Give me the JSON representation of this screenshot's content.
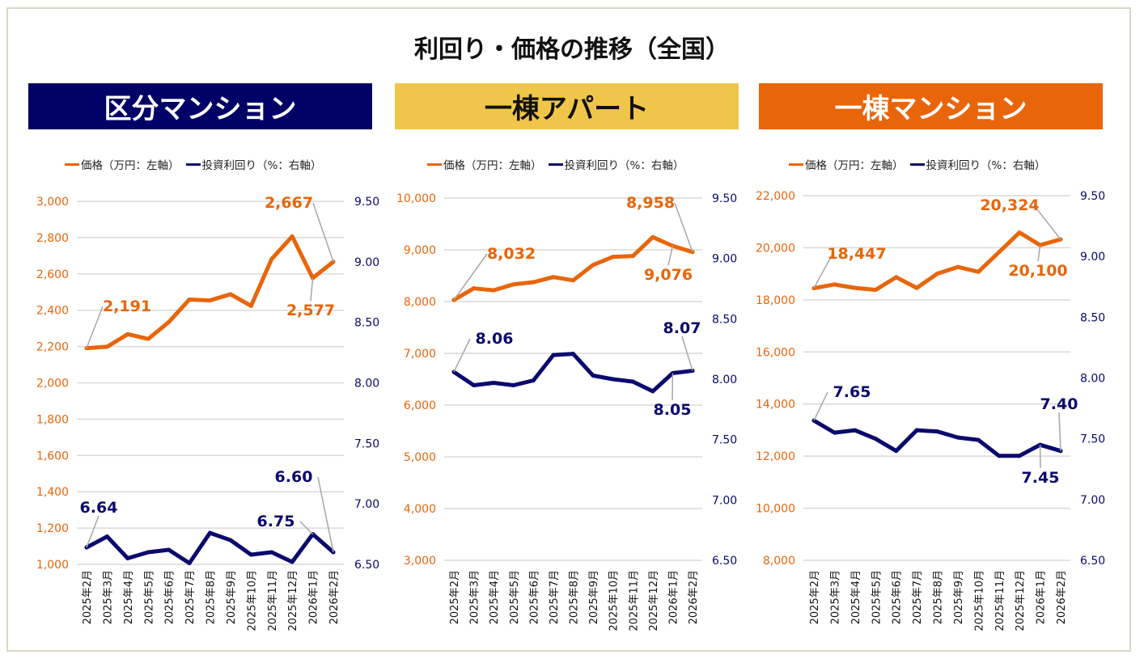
{
  "title": "利回り・価格の推移（全国）",
  "colors": {
    "price": "#e8650a",
    "yield": "#0a0a6e",
    "grid": "#d9d9d9",
    "leader": "#a6a6a6"
  },
  "legend": {
    "price": "価格（万円：左軸）",
    "yield": "投資利回り（%：右軸）"
  },
  "chart_data": [
    {
      "type": "line",
      "title": "区分マンション",
      "banner_color": "#000066",
      "banner_text_color": "#ffffff",
      "categories": [
        "2025年2月",
        "2025年3月",
        "2025年4月",
        "2025年5月",
        "2025年6月",
        "2025年7月",
        "2025年8月",
        "2025年9月",
        "2025年10月",
        "2025年11月",
        "2025年12月",
        "2026年1月",
        "2026年2月"
      ],
      "left_axis": {
        "ylim": [
          1000,
          3000
        ],
        "ticks": [
          "1,000",
          "1,200",
          "1,400",
          "1,600",
          "1,800",
          "2,000",
          "2,200",
          "2,400",
          "2,600",
          "2,800",
          "3,000"
        ]
      },
      "right_axis": {
        "ylim": [
          6.5,
          9.5
        ],
        "ticks": [
          "6.50",
          "7.00",
          "7.50",
          "8.00",
          "8.50",
          "9.00",
          "9.50"
        ]
      },
      "grid": true,
      "legend_position": "top",
      "series": [
        {
          "name": "価格（万円：左軸）",
          "axis": "left",
          "values": [
            2191,
            2199,
            2268,
            2242,
            2335,
            2459,
            2454,
            2488,
            2424,
            2682,
            2807,
            2577,
            2667
          ]
        },
        {
          "name": "投資利回り（%：右軸）",
          "axis": "right",
          "values": [
            6.64,
            6.73,
            6.55,
            6.6,
            6.62,
            6.51,
            6.76,
            6.7,
            6.58,
            6.6,
            6.52,
            6.75,
            6.6
          ]
        }
      ],
      "data_labels": [
        {
          "series": 0,
          "index": 0,
          "text": "2,191"
        },
        {
          "series": 0,
          "index": 12,
          "text": "2,667"
        },
        {
          "series": 0,
          "index": 11,
          "text": "2,577"
        },
        {
          "series": 1,
          "index": 0,
          "text": "6.64"
        },
        {
          "series": 1,
          "index": 12,
          "text": "6.60"
        },
        {
          "series": 1,
          "index": 11,
          "text": "6.75"
        }
      ]
    },
    {
      "type": "line",
      "title": "一棟アパート",
      "banner_color": "#f0c64a",
      "banner_text_color": "#111111",
      "categories": [
        "2025年2月",
        "2025年3月",
        "2025年4月",
        "2025年5月",
        "2025年6月",
        "2025年7月",
        "2025年8月",
        "2025年9月",
        "2025年10月",
        "2025年11月",
        "2025年12月",
        "2026年1月",
        "2026年2月"
      ],
      "left_axis": {
        "ylim": [
          3000,
          10000
        ],
        "ticks": [
          "3,000",
          "4,000",
          "5,000",
          "6,000",
          "7,000",
          "8,000",
          "9,000",
          "10,000"
        ]
      },
      "right_axis": {
        "ylim": [
          6.5,
          9.5
        ],
        "ticks": [
          "6.50",
          "7.00",
          "7.50",
          "8.00",
          "8.50",
          "9.00",
          "9.50"
        ]
      },
      "grid": true,
      "legend_position": "top",
      "series": [
        {
          "name": "価格（万円：左軸）",
          "axis": "left",
          "values": [
            8032,
            8255,
            8219,
            8333,
            8375,
            8474,
            8411,
            8708,
            8865,
            8880,
            9245,
            9076,
            8958
          ]
        },
        {
          "name": "投資利回り（%：右軸）",
          "axis": "right",
          "values": [
            8.06,
            7.95,
            7.97,
            7.95,
            7.99,
            8.2,
            8.21,
            8.03,
            8.0,
            7.98,
            7.9,
            8.05,
            8.07
          ]
        }
      ],
      "data_labels": [
        {
          "series": 0,
          "index": 0,
          "text": "8,032"
        },
        {
          "series": 0,
          "index": 12,
          "text": "8,958"
        },
        {
          "series": 0,
          "index": 11,
          "text": "9,076"
        },
        {
          "series": 1,
          "index": 0,
          "text": "8.06"
        },
        {
          "series": 1,
          "index": 12,
          "text": "8.07"
        },
        {
          "series": 1,
          "index": 11,
          "text": "8.05"
        }
      ]
    },
    {
      "type": "line",
      "title": "一棟マンション",
      "banner_color": "#e8650a",
      "banner_text_color": "#ffffff",
      "categories": [
        "2025年2月",
        "2025年3月",
        "2025年4月",
        "2025年5月",
        "2025年6月",
        "2025年7月",
        "2025年8月",
        "2025年9月",
        "2025年10月",
        "2025年11月",
        "2025年12月",
        "2026年1月",
        "2026年2月"
      ],
      "left_axis": {
        "ylim": [
          8000,
          22000
        ],
        "ticks": [
          "8,000",
          "10,000",
          "12,000",
          "14,000",
          "16,000",
          "18,000",
          "20,000",
          "22,000"
        ]
      },
      "right_axis": {
        "ylim": [
          6.5,
          9.5
        ],
        "ticks": [
          "6.50",
          "7.00",
          "7.50",
          "8.00",
          "8.50",
          "9.00",
          "9.50"
        ]
      },
      "grid": true,
      "legend_position": "top",
      "series": [
        {
          "name": "価格（万円：左軸）",
          "axis": "left",
          "values": [
            18447,
            18590,
            18457,
            18384,
            18870,
            18457,
            19004,
            19262,
            19076,
            19831,
            20585,
            20100,
            20324
          ]
        },
        {
          "name": "投資利回り（%：右軸）",
          "axis": "right",
          "values": [
            7.65,
            7.55,
            7.57,
            7.5,
            7.4,
            7.57,
            7.56,
            7.51,
            7.49,
            7.36,
            7.36,
            7.45,
            7.4
          ]
        }
      ],
      "data_labels": [
        {
          "series": 0,
          "index": 0,
          "text": "18,447"
        },
        {
          "series": 0,
          "index": 12,
          "text": "20,324"
        },
        {
          "series": 0,
          "index": 11,
          "text": "20,100"
        },
        {
          "series": 1,
          "index": 0,
          "text": "7.65"
        },
        {
          "series": 1,
          "index": 12,
          "text": "7.40"
        },
        {
          "series": 1,
          "index": 11,
          "text": "7.45"
        }
      ]
    }
  ]
}
